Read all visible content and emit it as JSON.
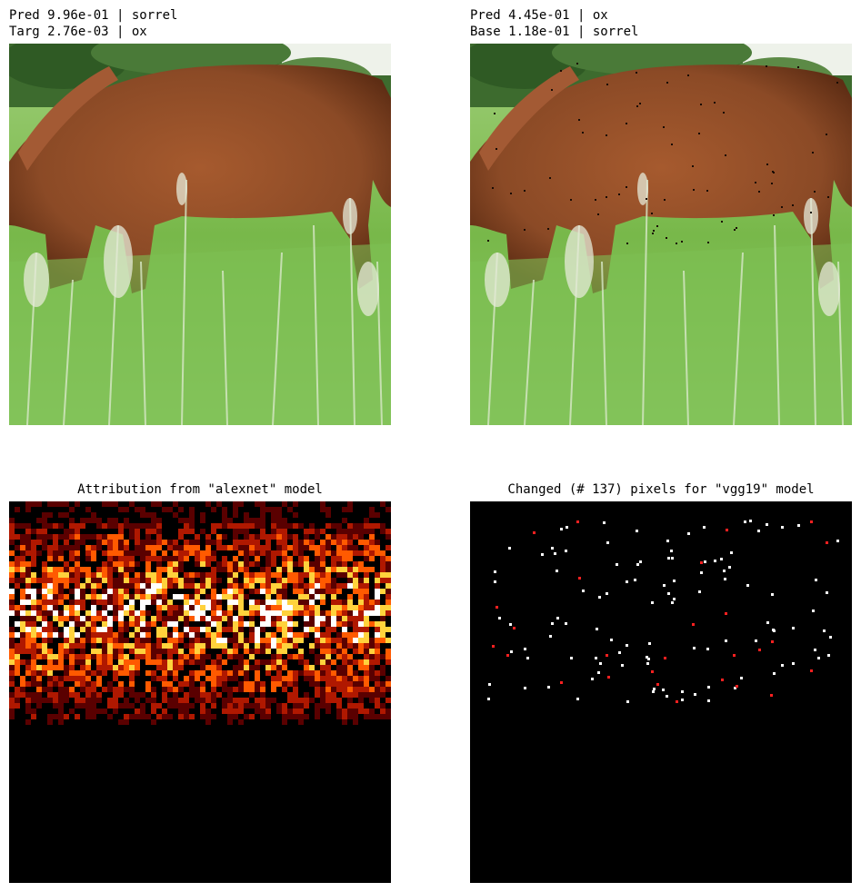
{
  "panels": {
    "original": {
      "line1": "Pred 9.96e-01 | sorrel",
      "line2": "Targ 2.76e-03 | ox"
    },
    "adversarial": {
      "line1": "Pred 4.45e-01 | ox",
      "line2": "Base 1.18e-01 | sorrel"
    },
    "attribution": {
      "title": "Attribution from \"alexnet\" model",
      "colormap": [
        "#000000",
        "#5a0000",
        "#b01800",
        "#ff5a00",
        "#ffd23c",
        "#ffffff"
      ]
    },
    "changed": {
      "title": "Changed (# 137) pixels for \"vgg19\" model",
      "changed_count": 137,
      "pixel_colors": [
        "#ffffff",
        "#ff2020"
      ]
    }
  },
  "colors": {
    "horse": "#8b4a26",
    "horse_dark": "#5e2d14",
    "grass": "#7fc050",
    "grass_light": "#c9e6a8",
    "trees": "#3d6b2e",
    "sky": "#eef2ea"
  }
}
